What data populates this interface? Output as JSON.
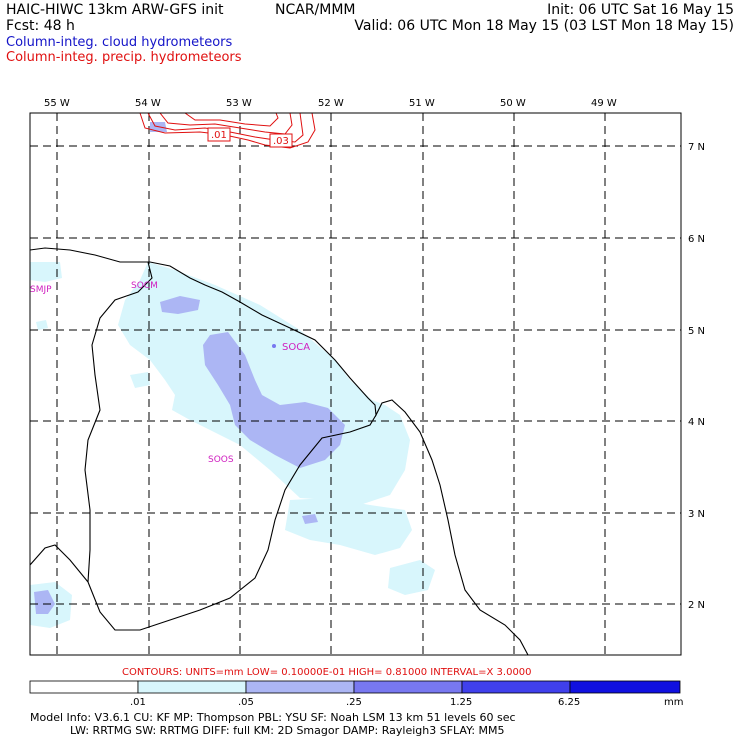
{
  "header": {
    "model_title": "HAIC-HIWC 13km ARW-GFS init",
    "forecast": "Fcst:   48 h",
    "center": "NCAR/MMM",
    "init": "Init: 06 UTC Sat 16 May 15",
    "valid": "Valid: 06 UTC Mon 18 May 15 (03 LST Mon 18 May 15)",
    "field_cloud": "Column-integ. cloud hydrometeors",
    "field_precip": "Column-integ. precip. hydrometeors"
  },
  "colors": {
    "cloud_label": "#1414c8",
    "precip_label": "#e01010",
    "station": "#d020c0",
    "fill_01": "#d8f6fc",
    "fill_05": "#acb6f4",
    "fill_25": "#7878f0",
    "fill_125": "#4040ec",
    "fill_625": "#1010e0",
    "contour": "#e01010"
  },
  "map": {
    "lon_labels": [
      "55 W",
      "54 W",
      "53 W",
      "52 W",
      "51 W",
      "50 W",
      "49 W"
    ],
    "lat_labels": [
      "7 N",
      "6 N",
      "5 N",
      "4 N",
      "3 N",
      "2 N"
    ],
    "stations": [
      "SMJP",
      "SOCM",
      "SOCA",
      "SOOS"
    ],
    "contour_labels": [
      ".01",
      ".03"
    ]
  },
  "contours_info": "CONTOURS:  UNITS=mm  LOW= 0.10000E-01  HIGH= 0.81000      INTERVAL=X  3.0000",
  "colorbar": {
    "ticks": [
      ".01",
      ".05",
      ".25",
      "1.25",
      "6.25"
    ],
    "units": "mm"
  },
  "model_info": {
    "line1": "Model Info: V3.6.1    CU: KF       MP: Thompson     PBL: YSU       SF: Noah LSM      13 km    51 levels   60 sec",
    "line2": "LW: RRTMG   SW: RRTMG   DIFF: full    KM: 2D Smagor DAMP: Rayleigh3  SFLAY: MM5"
  }
}
